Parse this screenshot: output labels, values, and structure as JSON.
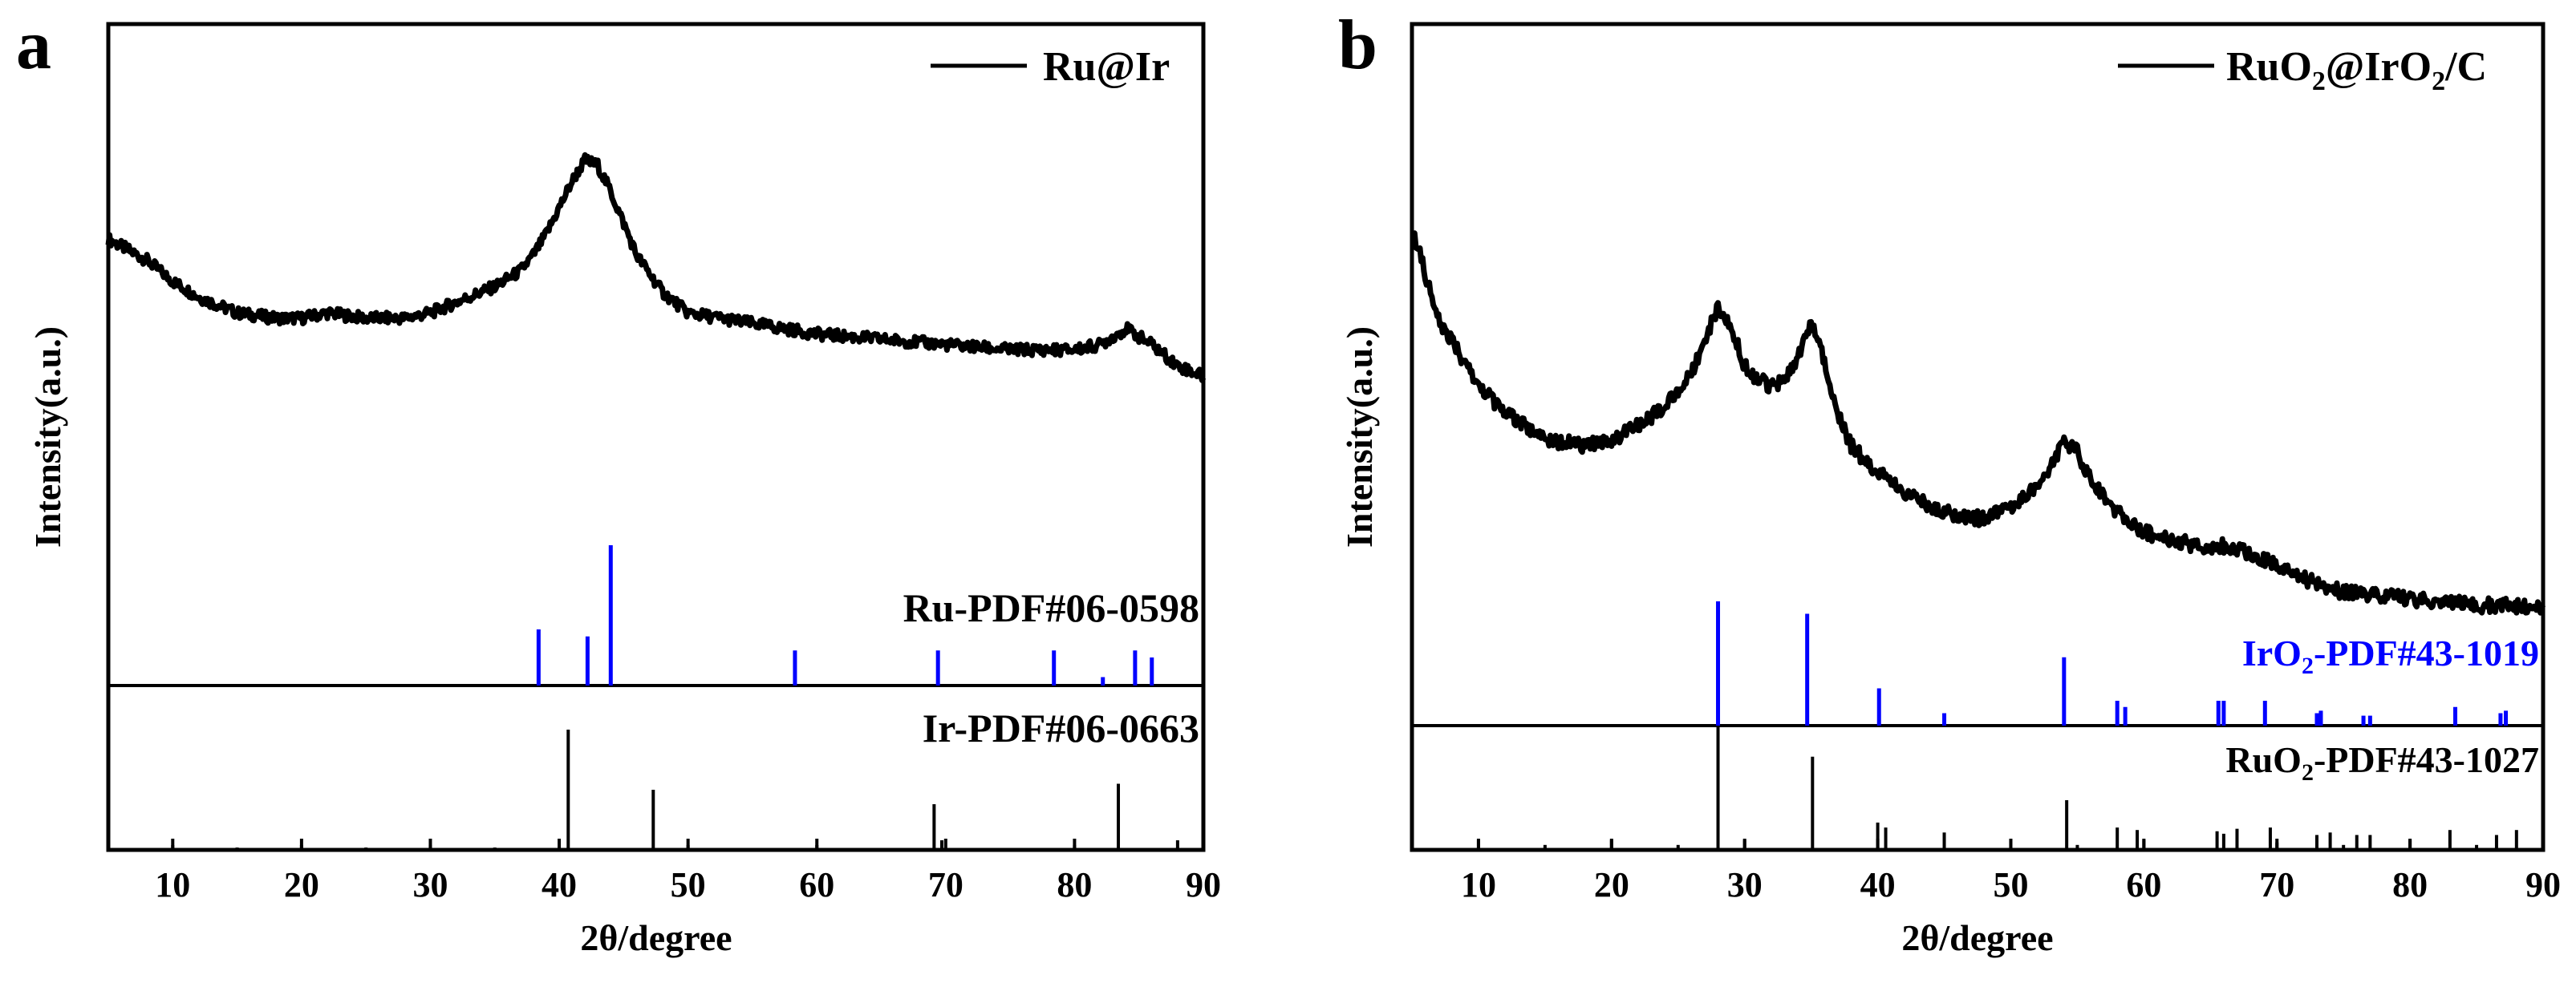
{
  "chart_data": [
    {
      "type": "line",
      "panel_label": "a",
      "xlabel": "2θ/degree",
      "ylabel": "Intensity(a.u.)",
      "xlim": [
        5,
        90
      ],
      "xticks": [
        10,
        20,
        30,
        40,
        50,
        60,
        70,
        80,
        90
      ],
      "grid": false,
      "legend": "top-right",
      "series": [
        {
          "name": "Ru@Ir",
          "color": "#000000",
          "x": [
            5,
            8,
            10,
            12,
            15,
            18,
            20,
            22,
            25,
            28,
            30,
            32,
            35,
            37,
            38,
            39,
            40,
            41,
            42,
            43,
            44,
            45,
            46,
            48,
            50,
            55,
            60,
            65,
            70,
            75,
            80,
            82,
            84,
            86,
            88,
            90
          ],
          "values": [
            0.92,
            0.88,
            0.84,
            0.81,
            0.78,
            0.77,
            0.77,
            0.78,
            0.77,
            0.77,
            0.78,
            0.8,
            0.83,
            0.86,
            0.89,
            0.93,
            0.98,
            1.03,
            1.07,
            1.06,
            1.01,
            0.95,
            0.89,
            0.82,
            0.78,
            0.76,
            0.74,
            0.73,
            0.72,
            0.71,
            0.71,
            0.72,
            0.75,
            0.72,
            0.68,
            0.66
          ]
        }
      ],
      "references": [
        {
          "name": "Ru-PDF#06-0598",
          "color": "#0000ff",
          "positions": [
            38.4,
            42.2,
            44.0,
            58.3,
            69.4,
            78.4,
            82.2,
            84.7,
            86.0
          ],
          "intensities": [
            40,
            35,
            100,
            25,
            25,
            25,
            6,
            25,
            20
          ]
        },
        {
          "name": "Ir-PDF#06-0663",
          "color": "#000000",
          "positions": [
            10,
            15,
            20,
            25,
            30,
            35,
            40.7,
            47.3,
            50,
            60,
            69.1,
            69.7,
            80,
            83.4,
            88.0
          ],
          "intensities": [
            4,
            2,
            4,
            2,
            4,
            2,
            100,
            50,
            4,
            4,
            38,
            8,
            4,
            55,
            8
          ]
        }
      ]
    },
    {
      "type": "line",
      "panel_label": "b",
      "xlabel": "2θ/degree",
      "ylabel": "Intensity(a.u.)",
      "xlim": [
        5,
        90
      ],
      "xticks": [
        10,
        20,
        30,
        40,
        50,
        60,
        70,
        80,
        90
      ],
      "grid": false,
      "legend": "top-right",
      "series": [
        {
          "name": "RuO2@IrO2/C",
          "legend_main": "RuO",
          "legend_sub1": "2",
          "legend_mid": "@IrO",
          "legend_sub2": "2",
          "legend_tail": "/C",
          "color": "#000000",
          "x": [
            5,
            7,
            10,
            12,
            15,
            18,
            20,
            22,
            24,
            26,
            27,
            28,
            29,
            30,
            31,
            32,
            33,
            34,
            35,
            36,
            37,
            38,
            40,
            42,
            45,
            48,
            50,
            52,
            53,
            54,
            55,
            56,
            58,
            60,
            62,
            64,
            66,
            68,
            70,
            72,
            75,
            80,
            85,
            90
          ],
          "values": [
            1.0,
            0.86,
            0.76,
            0.72,
            0.68,
            0.67,
            0.68,
            0.7,
            0.73,
            0.78,
            0.83,
            0.88,
            0.85,
            0.79,
            0.77,
            0.76,
            0.77,
            0.8,
            0.86,
            0.8,
            0.72,
            0.67,
            0.63,
            0.6,
            0.57,
            0.56,
            0.58,
            0.61,
            0.64,
            0.68,
            0.66,
            0.62,
            0.57,
            0.54,
            0.53,
            0.52,
            0.52,
            0.51,
            0.49,
            0.47,
            0.45,
            0.44,
            0.43,
            0.43
          ]
        }
      ],
      "references": [
        {
          "name": "IrO2-PDF#43-1019",
          "name_main": "IrO",
          "name_sub": "2",
          "name_tail": "-PDF#43-1019",
          "color": "#0000ff",
          "positions": [
            28.0,
            34.7,
            40.1,
            45.0,
            54.0,
            58.0,
            58.6,
            65.6,
            66.0,
            69.1,
            73.0,
            73.3,
            76.5,
            77.0,
            83.4,
            86.8,
            87.2
          ],
          "intensities": [
            100,
            90,
            30,
            10,
            55,
            20,
            15,
            20,
            20,
            20,
            10,
            12,
            8,
            8,
            15,
            10,
            12
          ]
        },
        {
          "name": "RuO2-PDF#43-1027",
          "name_main": "RuO",
          "name_sub": "2",
          "name_tail": "-PDF#43-1027",
          "color": "#000000",
          "positions": [
            10,
            15,
            20,
            25,
            28.0,
            30,
            35.1,
            40.0,
            40.6,
            45,
            50,
            54.2,
            55,
            58.0,
            59.5,
            60,
            65.5,
            66.0,
            67.0,
            69.5,
            70,
            73.0,
            74.0,
            75,
            76.0,
            77.0,
            80,
            83.0,
            85,
            86.5,
            88.0,
            90
          ],
          "intensities": [
            8,
            4,
            8,
            4,
            100,
            8,
            75,
            22,
            18,
            14,
            8,
            40,
            4,
            18,
            16,
            8,
            15,
            13,
            17,
            18,
            6,
            12,
            14,
            4,
            12,
            12,
            8,
            16,
            4,
            12,
            16,
            14
          ]
        }
      ]
    }
  ]
}
